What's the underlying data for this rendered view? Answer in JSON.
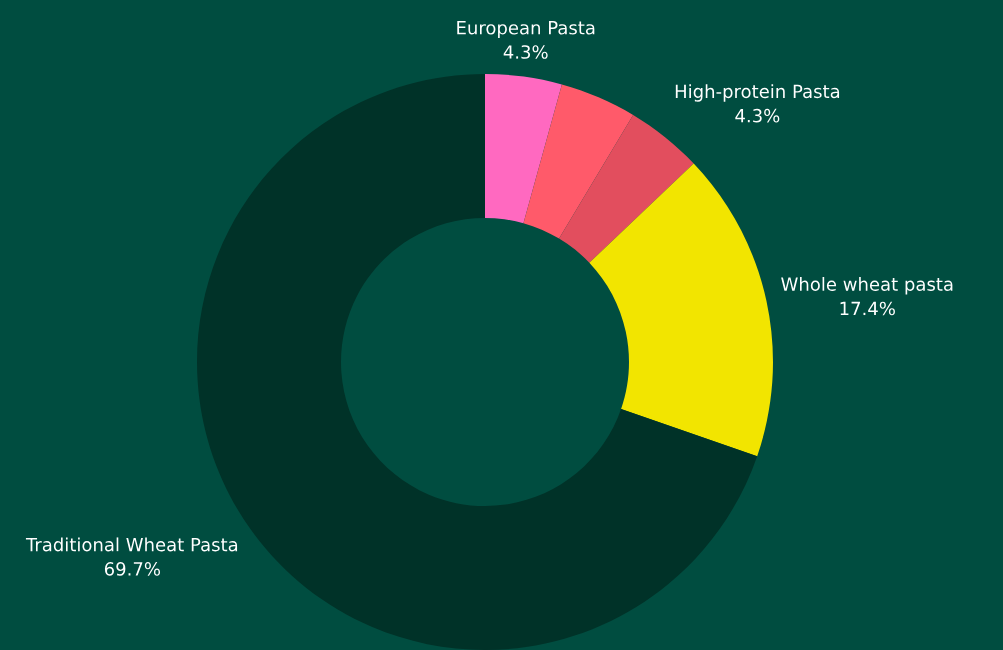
{
  "chart_data": {
    "type": "donut",
    "categories": [
      "European Pasta",
      null,
      "High-protein Pasta",
      "Whole wheat pasta",
      "Traditional Wheat Pasta"
    ],
    "values": [
      4.3,
      4.3,
      4.3,
      17.4,
      69.7
    ],
    "value_labels": [
      "4.3%",
      null,
      "4.3%",
      "17.4%",
      "69.7%"
    ],
    "colors": [
      "#ff69c0",
      "#ff5a6a",
      "#e24e5e",
      "#f2e500",
      "#003228"
    ],
    "legend": false
  }
}
